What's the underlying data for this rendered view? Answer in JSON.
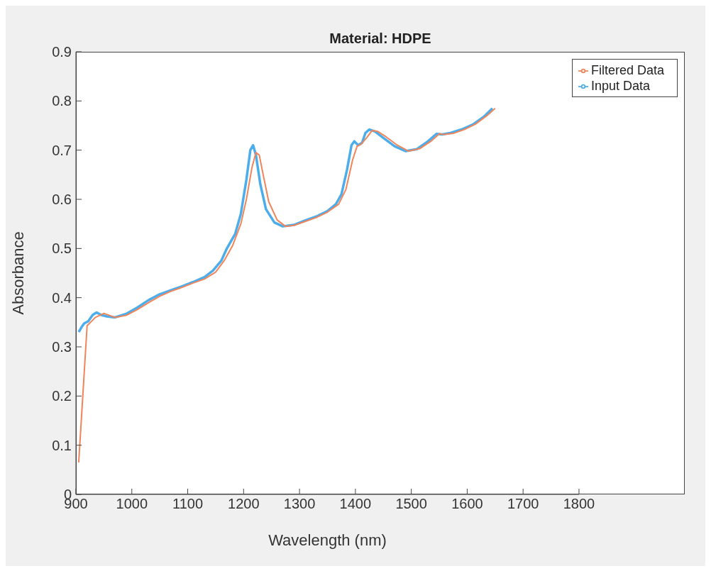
{
  "chart_data": {
    "type": "line",
    "title": "Material: HDPE",
    "xlabel": "Wavelength (nm)",
    "ylabel": "Absorbance",
    "xlim": [
      900,
      1800
    ],
    "xticks": [
      900,
      1000,
      1100,
      1200,
      1300,
      1400,
      1500,
      1600,
      1700,
      1800
    ],
    "ylim": [
      0,
      0.9
    ],
    "yticks": [
      0,
      0.1,
      0.2,
      0.3,
      0.4,
      0.5,
      0.6,
      0.7,
      0.8,
      0.9
    ],
    "grid": false,
    "legend": "top right",
    "marker": "none",
    "line_style": "solid",
    "series": [
      {
        "name": "Input Data",
        "color": "#4dadea",
        "x": [
          905,
          910,
          915,
          922,
          930,
          937,
          945,
          955,
          970,
          990,
          1010,
          1030,
          1050,
          1070,
          1090,
          1110,
          1130,
          1145,
          1160,
          1170,
          1185,
          1195,
          1205,
          1212,
          1217,
          1222,
          1230,
          1240,
          1255,
          1270,
          1290,
          1310,
          1330,
          1350,
          1365,
          1375,
          1385,
          1393,
          1398,
          1405,
          1412,
          1418,
          1425,
          1435,
          1450,
          1470,
          1490,
          1510,
          1530,
          1545,
          1555,
          1570,
          1590,
          1610,
          1630,
          1645
        ],
        "values": [
          0.33,
          0.34,
          0.348,
          0.352,
          0.365,
          0.37,
          0.365,
          0.362,
          0.36,
          0.367,
          0.38,
          0.395,
          0.407,
          0.415,
          0.423,
          0.432,
          0.442,
          0.455,
          0.475,
          0.5,
          0.53,
          0.57,
          0.64,
          0.7,
          0.71,
          0.69,
          0.63,
          0.58,
          0.553,
          0.545,
          0.548,
          0.557,
          0.565,
          0.576,
          0.59,
          0.61,
          0.66,
          0.71,
          0.718,
          0.71,
          0.715,
          0.735,
          0.742,
          0.738,
          0.725,
          0.708,
          0.698,
          0.702,
          0.718,
          0.733,
          0.732,
          0.735,
          0.742,
          0.752,
          0.768,
          0.785
        ]
      },
      {
        "name": "Filtered Data",
        "color": "#f0845a",
        "x": [
          905,
          920,
          935,
          950,
          970,
          990,
          1010,
          1030,
          1050,
          1070,
          1090,
          1110,
          1130,
          1150,
          1165,
          1180,
          1195,
          1205,
          1215,
          1222,
          1228,
          1235,
          1245,
          1260,
          1275,
          1290,
          1310,
          1330,
          1350,
          1370,
          1383,
          1395,
          1403,
          1410,
          1420,
          1430,
          1440,
          1455,
          1475,
          1495,
          1515,
          1535,
          1550,
          1560,
          1575,
          1595,
          1615,
          1635,
          1650
        ],
        "values": [
          0.065,
          0.343,
          0.36,
          0.368,
          0.36,
          0.364,
          0.376,
          0.39,
          0.403,
          0.413,
          0.421,
          0.43,
          0.438,
          0.452,
          0.475,
          0.505,
          0.55,
          0.6,
          0.665,
          0.695,
          0.69,
          0.65,
          0.595,
          0.558,
          0.545,
          0.547,
          0.555,
          0.563,
          0.574,
          0.59,
          0.62,
          0.68,
          0.708,
          0.712,
          0.725,
          0.74,
          0.738,
          0.727,
          0.71,
          0.698,
          0.703,
          0.718,
          0.733,
          0.732,
          0.734,
          0.742,
          0.753,
          0.77,
          0.785
        ]
      }
    ]
  }
}
